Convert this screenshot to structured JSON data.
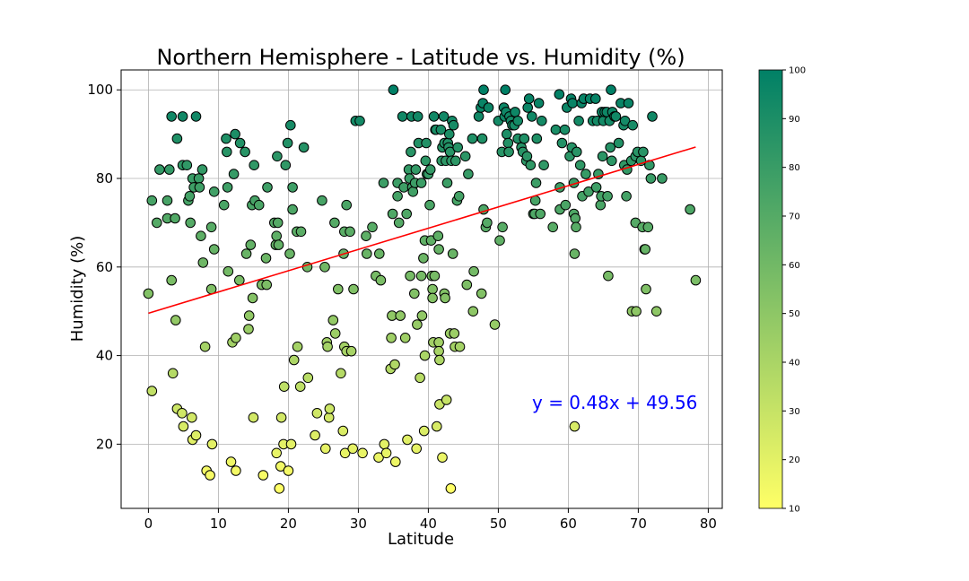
{
  "chart_data": {
    "type": "scatter",
    "title": "Northern Hemisphere - Latitude vs.  Humidity (%)",
    "xlabel": "Latitude",
    "ylabel": "Humidity (%)",
    "xlim": [
      -3.9,
      82
    ],
    "ylim": [
      5.5,
      104.5
    ],
    "xticks": [
      0,
      10,
      20,
      30,
      40,
      50,
      60,
      70,
      80
    ],
    "yticks": [
      20,
      40,
      60,
      80,
      100
    ],
    "grid": true,
    "colormap": "summer_r",
    "color_by": "y",
    "colorbar": {
      "min": 10,
      "max": 100,
      "ticks": [
        10,
        20,
        30,
        40,
        50,
        60,
        70,
        80,
        90,
        100
      ],
      "color_low": "#ffff66",
      "color_high": "#008066"
    },
    "regression": {
      "slope": 0.48,
      "intercept": 49.56,
      "x_range": [
        0,
        78.2
      ],
      "color": "#ff0000",
      "equation": "y = 0.48x + 49.56",
      "equation_color": "#0000ff"
    },
    "points": [
      [
        0.0,
        54
      ],
      [
        0.5,
        75
      ],
      [
        0.5,
        32
      ],
      [
        1.2,
        70
      ],
      [
        1.6,
        82
      ],
      [
        2.7,
        75
      ],
      [
        2.7,
        71
      ],
      [
        3.0,
        82
      ],
      [
        3.3,
        94
      ],
      [
        3.3,
        57
      ],
      [
        3.5,
        36
      ],
      [
        3.8,
        71
      ],
      [
        3.9,
        48
      ],
      [
        4.1,
        89
      ],
      [
        4.1,
        28
      ],
      [
        4.8,
        27
      ],
      [
        4.9,
        94
      ],
      [
        4.9,
        83
      ],
      [
        5.0,
        24
      ],
      [
        5.5,
        83
      ],
      [
        5.7,
        75
      ],
      [
        5.9,
        76
      ],
      [
        6.0,
        70
      ],
      [
        6.3,
        80
      ],
      [
        6.5,
        78
      ],
      [
        6.2,
        26
      ],
      [
        6.3,
        21
      ],
      [
        6.8,
        94
      ],
      [
        6.8,
        22
      ],
      [
        7.2,
        80
      ],
      [
        7.3,
        78
      ],
      [
        7.5,
        67
      ],
      [
        7.7,
        82
      ],
      [
        7.8,
        61
      ],
      [
        8.1,
        42
      ],
      [
        8.3,
        14
      ],
      [
        8.8,
        13
      ],
      [
        9.0,
        69
      ],
      [
        9.0,
        55
      ],
      [
        9.1,
        20
      ],
      [
        9.4,
        77
      ],
      [
        9.4,
        64
      ],
      [
        10.8,
        74
      ],
      [
        11.1,
        89
      ],
      [
        11.2,
        86
      ],
      [
        11.3,
        78
      ],
      [
        11.4,
        59
      ],
      [
        11.8,
        16
      ],
      [
        12.0,
        43
      ],
      [
        12.2,
        81
      ],
      [
        12.4,
        90
      ],
      [
        12.5,
        44
      ],
      [
        12.5,
        14
      ],
      [
        13.0,
        57
      ],
      [
        13.1,
        88
      ],
      [
        13.8,
        86
      ],
      [
        14.0,
        63
      ],
      [
        14.3,
        46
      ],
      [
        14.4,
        49
      ],
      [
        14.6,
        65
      ],
      [
        14.8,
        74
      ],
      [
        14.9,
        53
      ],
      [
        15.0,
        26
      ],
      [
        15.1,
        83
      ],
      [
        15.2,
        75
      ],
      [
        15.8,
        74
      ],
      [
        16.2,
        56
      ],
      [
        16.4,
        13
      ],
      [
        16.8,
        62
      ],
      [
        16.9,
        56
      ],
      [
        17.0,
        78
      ],
      [
        18.0,
        70
      ],
      [
        18.2,
        65
      ],
      [
        18.3,
        67
      ],
      [
        18.3,
        18
      ],
      [
        18.4,
        85
      ],
      [
        18.5,
        70
      ],
      [
        18.6,
        65
      ],
      [
        18.7,
        10
      ],
      [
        18.9,
        15
      ],
      [
        19.0,
        26
      ],
      [
        19.3,
        20
      ],
      [
        19.4,
        33
      ],
      [
        19.6,
        83
      ],
      [
        19.9,
        88
      ],
      [
        20.0,
        14
      ],
      [
        20.2,
        63
      ],
      [
        20.3,
        92
      ],
      [
        20.4,
        20
      ],
      [
        20.6,
        78
      ],
      [
        20.6,
        73
      ],
      [
        20.8,
        39
      ],
      [
        21.2,
        68
      ],
      [
        21.3,
        42
      ],
      [
        21.7,
        33
      ],
      [
        21.8,
        68
      ],
      [
        22.2,
        87
      ],
      [
        22.7,
        60
      ],
      [
        22.8,
        35
      ],
      [
        23.8,
        22
      ],
      [
        24.1,
        27
      ],
      [
        24.8,
        75
      ],
      [
        25.2,
        60
      ],
      [
        25.3,
        19
      ],
      [
        25.5,
        43
      ],
      [
        25.6,
        42
      ],
      [
        25.8,
        26
      ],
      [
        25.9,
        28
      ],
      [
        26.4,
        48
      ],
      [
        26.6,
        70
      ],
      [
        26.7,
        45
      ],
      [
        27.1,
        55
      ],
      [
        27.5,
        36
      ],
      [
        27.8,
        23
      ],
      [
        27.9,
        63
      ],
      [
        28.0,
        68
      ],
      [
        28.0,
        42
      ],
      [
        28.1,
        18
      ],
      [
        28.3,
        74
      ],
      [
        28.3,
        41
      ],
      [
        28.8,
        68
      ],
      [
        29.0,
        41
      ],
      [
        29.2,
        19
      ],
      [
        29.3,
        55
      ],
      [
        29.6,
        93
      ],
      [
        30.2,
        93
      ],
      [
        30.6,
        18
      ],
      [
        31.1,
        67
      ],
      [
        31.2,
        63
      ],
      [
        32.0,
        69
      ],
      [
        32.5,
        58
      ],
      [
        32.9,
        17
      ],
      [
        33.0,
        63
      ],
      [
        33.2,
        57
      ],
      [
        33.6,
        79
      ],
      [
        33.7,
        20
      ],
      [
        34.0,
        18
      ],
      [
        34.6,
        37
      ],
      [
        34.7,
        44
      ],
      [
        34.8,
        49
      ],
      [
        34.9,
        72
      ],
      [
        35.0,
        100
      ],
      [
        35.2,
        38
      ],
      [
        35.3,
        16
      ],
      [
        35.6,
        79
      ],
      [
        35.6,
        76
      ],
      [
        35.8,
        70
      ],
      [
        36.0,
        49
      ],
      [
        36.3,
        94
      ],
      [
        36.5,
        78
      ],
      [
        36.7,
        44
      ],
      [
        36.9,
        72
      ],
      [
        37.0,
        21
      ],
      [
        37.2,
        82
      ],
      [
        37.3,
        80
      ],
      [
        37.4,
        58
      ],
      [
        37.5,
        86
      ],
      [
        37.6,
        94
      ],
      [
        37.7,
        78
      ],
      [
        37.8,
        77
      ],
      [
        38.0,
        54
      ],
      [
        38.1,
        79
      ],
      [
        38.2,
        82
      ],
      [
        38.3,
        19
      ],
      [
        38.4,
        47
      ],
      [
        38.5,
        94
      ],
      [
        38.6,
        88
      ],
      [
        38.8,
        35
      ],
      [
        39.0,
        79
      ],
      [
        39.0,
        58
      ],
      [
        39.1,
        49
      ],
      [
        39.3,
        62
      ],
      [
        39.4,
        23
      ],
      [
        39.5,
        66
      ],
      [
        39.5,
        40
      ],
      [
        39.6,
        84
      ],
      [
        39.7,
        88
      ],
      [
        39.8,
        81
      ],
      [
        40.0,
        81
      ],
      [
        40.2,
        74
      ],
      [
        40.3,
        82
      ],
      [
        40.4,
        66
      ],
      [
        40.5,
        58
      ],
      [
        40.6,
        55
      ],
      [
        40.6,
        53
      ],
      [
        40.7,
        43
      ],
      [
        40.8,
        94
      ],
      [
        40.9,
        58
      ],
      [
        41.0,
        91
      ],
      [
        41.1,
        91
      ],
      [
        41.2,
        24
      ],
      [
        41.4,
        67
      ],
      [
        41.5,
        64
      ],
      [
        41.5,
        43
      ],
      [
        41.5,
        41
      ],
      [
        41.6,
        39
      ],
      [
        41.6,
        29
      ],
      [
        41.8,
        91
      ],
      [
        41.9,
        84
      ],
      [
        42.0,
        87
      ],
      [
        42.0,
        17
      ],
      [
        42.2,
        94
      ],
      [
        42.3,
        88
      ],
      [
        42.3,
        54
      ],
      [
        42.4,
        53
      ],
      [
        42.5,
        84
      ],
      [
        42.6,
        30
      ],
      [
        42.7,
        79
      ],
      [
        42.8,
        88
      ],
      [
        42.9,
        87
      ],
      [
        43.0,
        90
      ],
      [
        43.1,
        86
      ],
      [
        43.1,
        45
      ],
      [
        43.2,
        10
      ],
      [
        43.3,
        84
      ],
      [
        43.4,
        93
      ],
      [
        43.5,
        63
      ],
      [
        43.6,
        92
      ],
      [
        43.7,
        45
      ],
      [
        43.8,
        42
      ],
      [
        43.9,
        84
      ],
      [
        44.1,
        75
      ],
      [
        44.2,
        87
      ],
      [
        44.4,
        76
      ],
      [
        44.5,
        42
      ],
      [
        45.3,
        85
      ],
      [
        45.5,
        56
      ],
      [
        45.7,
        81
      ],
      [
        46.3,
        89
      ],
      [
        46.4,
        50
      ],
      [
        46.5,
        59
      ],
      [
        47.2,
        94
      ],
      [
        47.5,
        96
      ],
      [
        47.6,
        54
      ],
      [
        47.7,
        89
      ],
      [
        47.8,
        97
      ],
      [
        47.9,
        73
      ],
      [
        47.9,
        100
      ],
      [
        48.2,
        69
      ],
      [
        48.4,
        70
      ],
      [
        48.6,
        96
      ],
      [
        49.5,
        47
      ],
      [
        50.0,
        93
      ],
      [
        50.2,
        66
      ],
      [
        50.5,
        86
      ],
      [
        50.6,
        69
      ],
      [
        50.8,
        96
      ],
      [
        50.9,
        94
      ],
      [
        51.0,
        100
      ],
      [
        51.1,
        95
      ],
      [
        51.2,
        90
      ],
      [
        51.4,
        88
      ],
      [
        51.5,
        86
      ],
      [
        51.6,
        94
      ],
      [
        51.8,
        93
      ],
      [
        52.0,
        92
      ],
      [
        52.3,
        92
      ],
      [
        52.4,
        95
      ],
      [
        52.8,
        93
      ],
      [
        52.8,
        89
      ],
      [
        53.3,
        87
      ],
      [
        53.5,
        86
      ],
      [
        53.7,
        89
      ],
      [
        54.0,
        84
      ],
      [
        54.1,
        85
      ],
      [
        54.2,
        96
      ],
      [
        54.4,
        98
      ],
      [
        54.6,
        83
      ],
      [
        54.8,
        94
      ],
      [
        55.0,
        72
      ],
      [
        55.2,
        72
      ],
      [
        55.3,
        75
      ],
      [
        55.4,
        79
      ],
      [
        55.5,
        89
      ],
      [
        55.8,
        97
      ],
      [
        56.0,
        72
      ],
      [
        56.2,
        93
      ],
      [
        56.5,
        83
      ],
      [
        57.8,
        69
      ],
      [
        58.2,
        91
      ],
      [
        58.7,
        99
      ],
      [
        58.8,
        78
      ],
      [
        58.8,
        73
      ],
      [
        59.1,
        88
      ],
      [
        59.5,
        91
      ],
      [
        59.6,
        74
      ],
      [
        59.8,
        96
      ],
      [
        60.2,
        85
      ],
      [
        60.4,
        98
      ],
      [
        60.5,
        87
      ],
      [
        60.6,
        97
      ],
      [
        60.8,
        79
      ],
      [
        60.8,
        72
      ],
      [
        60.9,
        63
      ],
      [
        60.9,
        24
      ],
      [
        61.0,
        71
      ],
      [
        61.1,
        69
      ],
      [
        61.2,
        86
      ],
      [
        61.5,
        93
      ],
      [
        61.7,
        83
      ],
      [
        61.9,
        97
      ],
      [
        62.0,
        76
      ],
      [
        62.2,
        98
      ],
      [
        62.5,
        81
      ],
      [
        62.9,
        77
      ],
      [
        63.1,
        98
      ],
      [
        63.5,
        93
      ],
      [
        63.9,
        98
      ],
      [
        64.0,
        78
      ],
      [
        64.1,
        93
      ],
      [
        64.3,
        81
      ],
      [
        64.6,
        74
      ],
      [
        64.7,
        76
      ],
      [
        64.8,
        95
      ],
      [
        64.9,
        85
      ],
      [
        65.0,
        93
      ],
      [
        65.2,
        95
      ],
      [
        65.5,
        95
      ],
      [
        65.6,
        76
      ],
      [
        65.7,
        58
      ],
      [
        65.9,
        93
      ],
      [
        66.0,
        87
      ],
      [
        66.1,
        100
      ],
      [
        66.2,
        84
      ],
      [
        66.3,
        95
      ],
      [
        66.6,
        94
      ],
      [
        66.8,
        94
      ],
      [
        67.2,
        88
      ],
      [
        67.5,
        97
      ],
      [
        67.9,
        92
      ],
      [
        68.0,
        83
      ],
      [
        68.1,
        93
      ],
      [
        68.3,
        76
      ],
      [
        68.4,
        82
      ],
      [
        68.6,
        97
      ],
      [
        69.0,
        84
      ],
      [
        69.1,
        50
      ],
      [
        69.2,
        92
      ],
      [
        69.6,
        85
      ],
      [
        69.6,
        70
      ],
      [
        69.7,
        50
      ],
      [
        69.9,
        86
      ],
      [
        70.4,
        84
      ],
      [
        70.6,
        69
      ],
      [
        70.7,
        86
      ],
      [
        70.9,
        64
      ],
      [
        71.0,
        64
      ],
      [
        71.1,
        55
      ],
      [
        71.4,
        69
      ],
      [
        71.6,
        83
      ],
      [
        71.8,
        80
      ],
      [
        72.0,
        94
      ],
      [
        72.6,
        50
      ],
      [
        73.4,
        80
      ],
      [
        77.4,
        73
      ],
      [
        78.2,
        57
      ]
    ]
  }
}
